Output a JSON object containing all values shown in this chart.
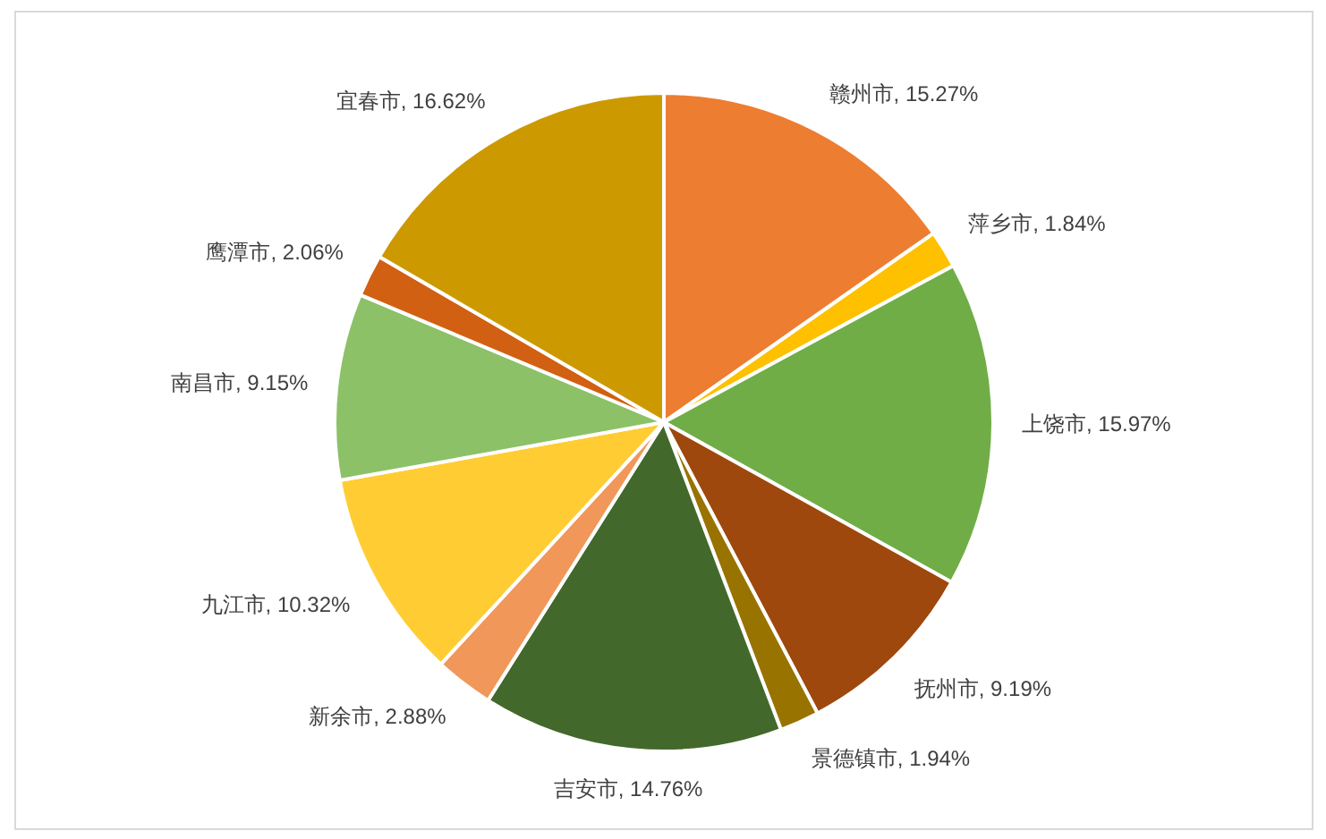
{
  "chart_data": {
    "type": "pie",
    "categories": [
      "赣州市",
      "萍乡市",
      "上饶市",
      "抚州市",
      "景德镇市",
      "吉安市",
      "新余市",
      "九江市",
      "南昌市",
      "鹰潭市",
      "宜春市"
    ],
    "values": [
      15.27,
      1.84,
      15.97,
      9.19,
      1.94,
      14.76,
      2.88,
      10.32,
      9.15,
      2.06,
      16.62
    ],
    "colors": [
      "#ed7d31",
      "#ffc000",
      "#70ad47",
      "#9e480e",
      "#997300",
      "#43682b",
      "#f1975a",
      "#ffcd33",
      "#8cc168",
      "#d26012",
      "#cc9a00"
    ],
    "value_labels": [
      "15.27%",
      "1.84%",
      "15.97%",
      "9.19%",
      "1.94%",
      "14.76%",
      "2.88%",
      "10.32%",
      "9.15%",
      "2.06%",
      "16.62%"
    ]
  }
}
